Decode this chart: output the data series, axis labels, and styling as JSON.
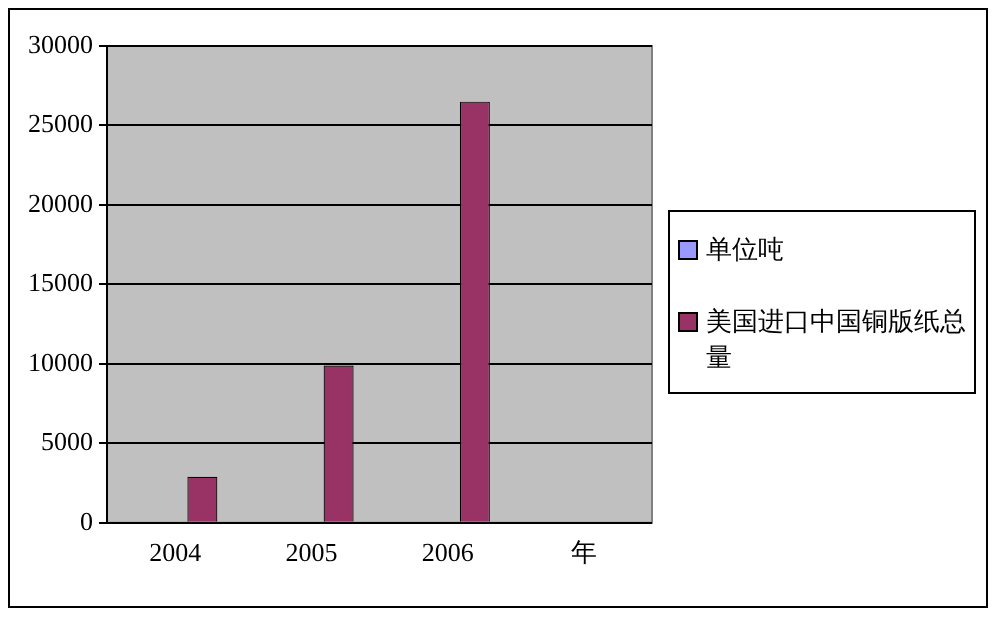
{
  "chart_data": {
    "type": "bar",
    "categories": [
      "2004",
      "2005",
      "2006",
      "年"
    ],
    "series": [
      {
        "name": "单位吨",
        "color": "#9999ff",
        "values": [
          null,
          null,
          null,
          null
        ]
      },
      {
        "name": "美国进口中国铜版纸总量",
        "color": "#993366",
        "values": [
          2900,
          9900,
          26500,
          null
        ]
      }
    ],
    "ylim": [
      0,
      30000
    ],
    "yticks": [
      0,
      5000,
      10000,
      15000,
      20000,
      25000,
      30000
    ],
    "grid": "y",
    "legend": "right"
  }
}
